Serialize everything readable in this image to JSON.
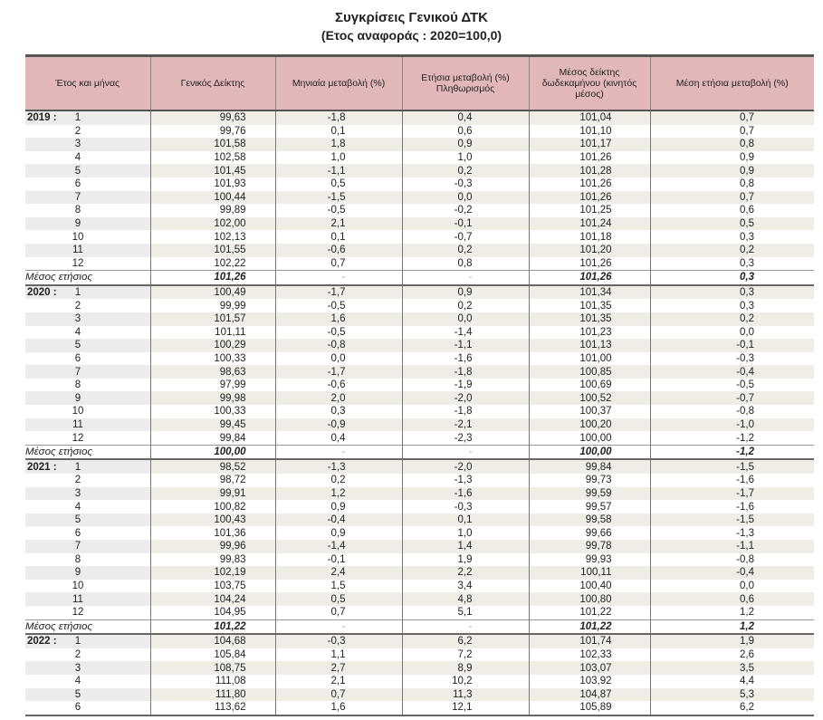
{
  "title": "Συγκρίσεις Γενικού ΔΤΚ",
  "subtitle": "(Ετος αναφοράς : 2020=100,0)",
  "headers": [
    "Έτος και μήνας",
    "Γενικός Δείκτης",
    "Μηνιαία μεταβολή (%)",
    "Ετήσια μεταβολή (%) Πληθωρισμός",
    "Μέσος δείκτης δωδεκαμήνου (κινητός μέσος)",
    "Μέση ετήσια μεταβολή (%)"
  ],
  "mean_label": "Μέσος ετήσιος",
  "years": [
    {
      "year": "2019 :",
      "rows": [
        [
          "1",
          "99,63",
          "-1,8",
          "0,4",
          "101,04",
          "0,7"
        ],
        [
          "2",
          "99,76",
          "0,1",
          "0,6",
          "101,10",
          "0,7"
        ],
        [
          "3",
          "101,58",
          "1,8",
          "0,9",
          "101,17",
          "0,8"
        ],
        [
          "4",
          "102,58",
          "1,0",
          "1,0",
          "101,26",
          "0,9"
        ],
        [
          "5",
          "101,45",
          "-1,1",
          "0,2",
          "101,28",
          "0,9"
        ],
        [
          "6",
          "101,93",
          "0,5",
          "-0,3",
          "101,26",
          "0,8"
        ],
        [
          "7",
          "100,44",
          "-1,5",
          "0,0",
          "101,26",
          "0,7"
        ],
        [
          "8",
          "99,89",
          "-0,5",
          "-0,2",
          "101,25",
          "0,6"
        ],
        [
          "9",
          "102,00",
          "2,1",
          "-0,1",
          "101,24",
          "0,5"
        ],
        [
          "10",
          "102,13",
          "0,1",
          "-0,7",
          "101,18",
          "0,3"
        ],
        [
          "11",
          "101,55",
          "-0,6",
          "0,2",
          "101,20",
          "0,2"
        ],
        [
          "12",
          "102,22",
          "0,7",
          "0,8",
          "101,26",
          "0,3"
        ]
      ],
      "mean": [
        "101,26",
        "-",
        "-",
        "101,26",
        "0,3"
      ]
    },
    {
      "year": "2020 :",
      "rows": [
        [
          "1",
          "100,49",
          "-1,7",
          "0,9",
          "101,34",
          "0,3"
        ],
        [
          "2",
          "99,99",
          "-0,5",
          "0,2",
          "101,35",
          "0,3"
        ],
        [
          "3",
          "101,57",
          "1,6",
          "0,0",
          "101,35",
          "0,2"
        ],
        [
          "4",
          "101,11",
          "-0,5",
          "-1,4",
          "101,23",
          "0,0"
        ],
        [
          "5",
          "100,29",
          "-0,8",
          "-1,1",
          "101,13",
          "-0,1"
        ],
        [
          "6",
          "100,33",
          "0,0",
          "-1,6",
          "101,00",
          "-0,3"
        ],
        [
          "7",
          "98,63",
          "-1,7",
          "-1,8",
          "100,85",
          "-0,4"
        ],
        [
          "8",
          "97,99",
          "-0,6",
          "-1,9",
          "100,69",
          "-0,5"
        ],
        [
          "9",
          "99,98",
          "2,0",
          "-2,0",
          "100,52",
          "-0,7"
        ],
        [
          "10",
          "100,33",
          "0,3",
          "-1,8",
          "100,37",
          "-0,8"
        ],
        [
          "11",
          "99,45",
          "-0,9",
          "-2,1",
          "100,20",
          "-1,0"
        ],
        [
          "12",
          "99,84",
          "0,4",
          "-2,3",
          "100,00",
          "-1,2"
        ]
      ],
      "mean": [
        "100,00",
        "-",
        "-",
        "100,00",
        "-1,2"
      ]
    },
    {
      "year": "2021 :",
      "rows": [
        [
          "1",
          "98,52",
          "-1,3",
          "-2,0",
          "99,84",
          "-1,5"
        ],
        [
          "2",
          "98,72",
          "0,2",
          "-1,3",
          "99,73",
          "-1,6"
        ],
        [
          "3",
          "99,91",
          "1,2",
          "-1,6",
          "99,59",
          "-1,7"
        ],
        [
          "4",
          "100,82",
          "0,9",
          "-0,3",
          "99,57",
          "-1,6"
        ],
        [
          "5",
          "100,43",
          "-0,4",
          "0,1",
          "99,58",
          "-1,5"
        ],
        [
          "6",
          "101,36",
          "0,9",
          "1,0",
          "99,66",
          "-1,3"
        ],
        [
          "7",
          "99,96",
          "-1,4",
          "1,4",
          "99,78",
          "-1,1"
        ],
        [
          "8",
          "99,83",
          "-0,1",
          "1,9",
          "99,93",
          "-0,8"
        ],
        [
          "9",
          "102,19",
          "2,4",
          "2,2",
          "100,11",
          "-0,4"
        ],
        [
          "10",
          "103,75",
          "1,5",
          "3,4",
          "100,40",
          "0,0"
        ],
        [
          "11",
          "104,24",
          "0,5",
          "4,8",
          "100,80",
          "0,6"
        ],
        [
          "12",
          "104,95",
          "0,7",
          "5,1",
          "101,22",
          "1,2"
        ]
      ],
      "mean": [
        "101,22",
        "-",
        "-",
        "101,22",
        "1,2"
      ]
    },
    {
      "year": "2022 :",
      "rows": [
        [
          "1",
          "104,68",
          "-0,3",
          "6,2",
          "101,74",
          "1,9"
        ],
        [
          "2",
          "105,84",
          "1,1",
          "7,2",
          "102,33",
          "2,6"
        ],
        [
          "3",
          "108,75",
          "2,7",
          "8,9",
          "103,07",
          "3,5"
        ],
        [
          "4",
          "111,08",
          "2,1",
          "10,2",
          "103,92",
          "4,4"
        ],
        [
          "5",
          "111,80",
          "0,7",
          "11,3",
          "104,87",
          "5,3"
        ],
        [
          "6",
          "113,62",
          "1,6",
          "12,1",
          "105,89",
          "6,2"
        ]
      ]
    }
  ]
}
